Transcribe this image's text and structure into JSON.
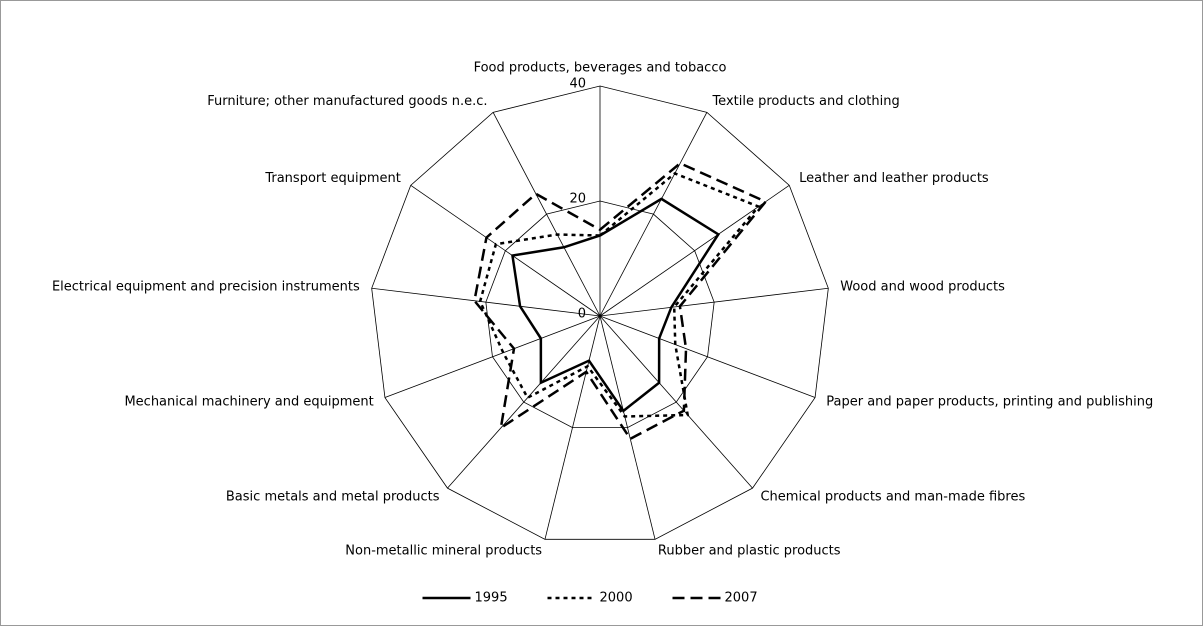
{
  "chart_data": {
    "type": "radar",
    "categories": [
      "Food products, beverages and tobacco",
      "Textile products and clothing",
      "Leather and leather products",
      "Wood and wood products",
      "Paper and paper products, printing and publishing",
      "Chemical products and man-made fibres",
      "Rubber and plastic products",
      "Non-metallic mineral products",
      "Basic metals and metal products",
      "Mechanical machinery and equipment",
      "Electrical equipment and precision instruments",
      "Transport equipment",
      "Furniture; other manufactured goods n.e.c."
    ],
    "rlim": [
      0,
      40
    ],
    "rticks": [
      0,
      20,
      40
    ],
    "grid": true,
    "legend": "bottom",
    "series": [
      {
        "name": "1995",
        "color": "#000000",
        "line_style": "solid",
        "values": [
          14,
          23,
          25,
          12.5,
          11,
          15.5,
          17,
          8,
          15.5,
          11,
          14,
          18.5,
          13.5
        ]
      },
      {
        "name": "2000",
        "color": "#000000",
        "line_style": "dotted",
        "values": [
          14,
          28,
          33.5,
          13,
          14,
          23,
          18,
          9,
          19,
          18,
          21,
          22,
          16
        ]
      },
      {
        "name": "2007",
        "color": "#000000",
        "line_style": "dashed",
        "values": [
          15,
          30,
          35,
          14,
          16,
          22,
          22,
          10,
          26,
          16,
          22,
          24,
          24
        ]
      }
    ]
  }
}
